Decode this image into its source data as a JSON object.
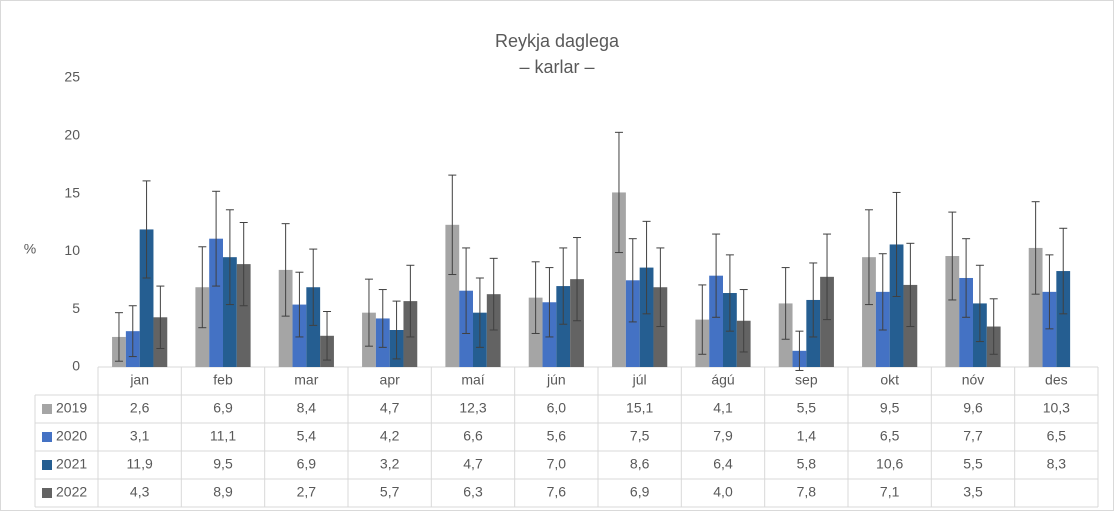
{
  "chart_data": {
    "type": "bar",
    "title": "Reykja daglega",
    "subtitle": "– karlar –",
    "y_label": "%",
    "categories": [
      "jan",
      "feb",
      "mar",
      "apr",
      "maí",
      "jún",
      "júl",
      "ágú",
      "sep",
      "okt",
      "nóv",
      "des"
    ],
    "series": [
      {
        "name": "2019",
        "color": "#a5a5a5",
        "values": [
          2.6,
          6.9,
          8.4,
          4.7,
          12.3,
          6.0,
          15.1,
          4.1,
          5.5,
          9.5,
          9.6,
          10.3
        ],
        "value_labels": [
          "2,6",
          "6,9",
          "8,4",
          "4,7",
          "12,3",
          "6,0",
          "15,1",
          "4,1",
          "5,5",
          "9,5",
          "9,6",
          "10,3"
        ],
        "errors": [
          2.1,
          3.5,
          4.0,
          2.9,
          4.3,
          3.1,
          5.2,
          3.0,
          3.1,
          4.1,
          3.8,
          4.0
        ]
      },
      {
        "name": "2020",
        "color": "#4472c4",
        "values": [
          3.1,
          11.1,
          5.4,
          4.2,
          6.6,
          5.6,
          7.5,
          7.9,
          1.4,
          6.5,
          7.7,
          6.5
        ],
        "value_labels": [
          "3,1",
          "11,1",
          "5,4",
          "4,2",
          "6,6",
          "5,6",
          "7,5",
          "7,9",
          "1,4",
          "6,5",
          "7,7",
          "6,5"
        ],
        "errors": [
          2.2,
          4.1,
          2.8,
          2.5,
          3.7,
          3.0,
          3.6,
          3.6,
          1.7,
          3.3,
          3.4,
          3.2
        ]
      },
      {
        "name": "2021",
        "color": "#255e91",
        "values": [
          11.9,
          9.5,
          6.9,
          3.2,
          4.7,
          7.0,
          8.6,
          6.4,
          5.8,
          10.6,
          5.5,
          8.3
        ],
        "value_labels": [
          "11,9",
          "9,5",
          "6,9",
          "3,2",
          "4,7",
          "7,0",
          "8,6",
          "6,4",
          "5,8",
          "10,6",
          "5,5",
          "8,3"
        ],
        "errors": [
          4.2,
          4.1,
          3.3,
          2.5,
          3.0,
          3.3,
          4.0,
          3.3,
          3.2,
          4.5,
          3.3,
          3.7
        ]
      },
      {
        "name": "2022",
        "color": "#636363",
        "values": [
          4.3,
          8.9,
          2.7,
          5.7,
          6.3,
          7.6,
          6.9,
          4.0,
          7.8,
          7.1,
          3.5,
          null
        ],
        "value_labels": [
          "4,3",
          "8,9",
          "2,7",
          "5,7",
          "6,3",
          "7,6",
          "6,9",
          "4,0",
          "7,8",
          "7,1",
          "3,5",
          null
        ],
        "errors": [
          2.7,
          3.6,
          2.1,
          3.1,
          3.1,
          3.6,
          3.4,
          2.7,
          3.7,
          3.6,
          2.4,
          null
        ]
      }
    ],
    "ylim": [
      0,
      25
    ],
    "yticks": [
      0,
      5,
      10,
      15,
      20,
      25
    ],
    "grid": false
  }
}
